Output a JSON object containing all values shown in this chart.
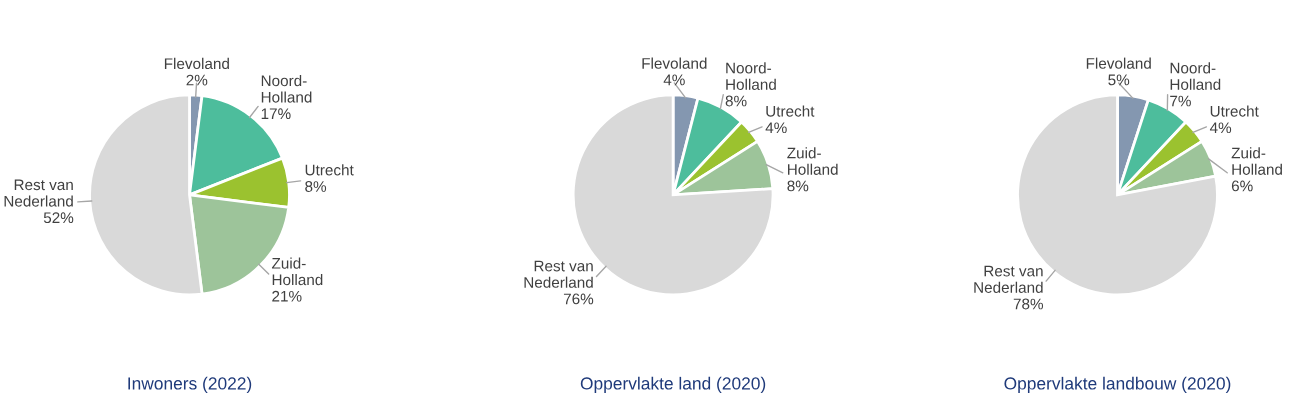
{
  "chart_data": [
    {
      "type": "pie",
      "title": "Inwoners (2022)",
      "categories": [
        "Flevoland",
        "Noord-Holland",
        "Utrecht",
        "Zuid-Holland",
        "Rest van Nederland"
      ],
      "values": [
        2,
        17,
        8,
        21,
        52
      ],
      "value_labels": [
        "2%",
        "17%",
        "8%",
        "21%",
        "52%"
      ],
      "colors": [
        "#8497b0",
        "#4dbd9c",
        "#9bc22f",
        "#9dc49a",
        "#d9d9d9"
      ]
    },
    {
      "type": "pie",
      "title": "Oppervlakte land (2020)",
      "categories": [
        "Flevoland",
        "Noord-Holland",
        "Utrecht",
        "Zuid-Holland",
        "Rest van Nederland"
      ],
      "values": [
        4,
        8,
        4,
        8,
        76
      ],
      "value_labels": [
        "4%",
        "8%",
        "4%",
        "8%",
        "76%"
      ],
      "colors": [
        "#8497b0",
        "#4dbd9c",
        "#9bc22f",
        "#9dc49a",
        "#d9d9d9"
      ]
    },
    {
      "type": "pie",
      "title": "Oppervlakte landbouw (2020)",
      "categories": [
        "Flevoland",
        "Noord-Holland",
        "Utrecht",
        "Zuid-Holland",
        "Rest van Nederland"
      ],
      "values": [
        5,
        7,
        4,
        6,
        78
      ],
      "value_labels": [
        "5%",
        "7%",
        "4%",
        "6%",
        "78%"
      ],
      "colors": [
        "#8497b0",
        "#4dbd9c",
        "#9bc22f",
        "#9dc49a",
        "#d9d9d9"
      ]
    }
  ]
}
